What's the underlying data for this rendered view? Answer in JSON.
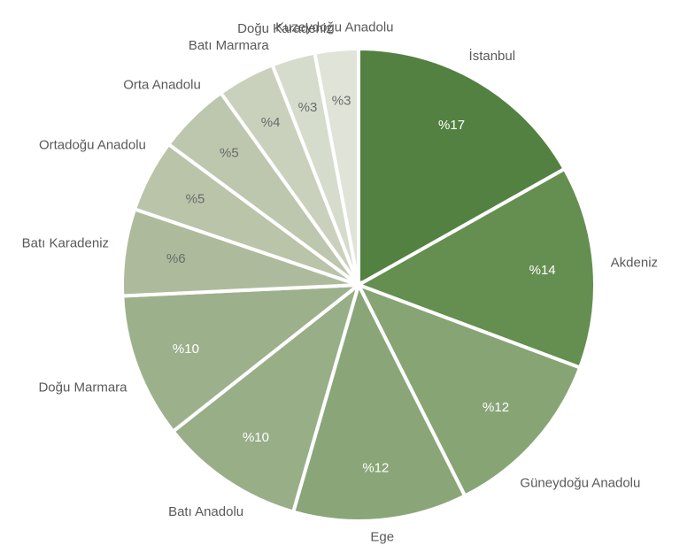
{
  "chart_data": {
    "type": "pie",
    "categories": [
      "İstanbul",
      "Akdeniz",
      "Güneydoğu Anadolu",
      "Ege",
      "Batı Anadolu",
      "Doğu Marmara",
      "Batı Karadeniz",
      "Ortadoğu Anadolu",
      "Orta Anadolu",
      "Batı Marmara",
      "Doğu  Karadeniz",
      "Kuzeydoğu Anadolu"
    ],
    "values": [
      17,
      14,
      12,
      12,
      10,
      10,
      6,
      5,
      5,
      4,
      3,
      3
    ],
    "value_labels": [
      "%17",
      "%14",
      "%12",
      "%12",
      "%10",
      "%10",
      "%6",
      "%5",
      "%5",
      "%4",
      "%3",
      "%3"
    ],
    "colors": [
      "#538142",
      "#648f50",
      "#87a475",
      "#8aa678",
      "#98ae87",
      "#9cb18b",
      "#adbb9c",
      "#b9c4a8",
      "#bcc7ad",
      "#c9d1bc",
      "#d6dccc",
      "#dfe3d8"
    ]
  }
}
